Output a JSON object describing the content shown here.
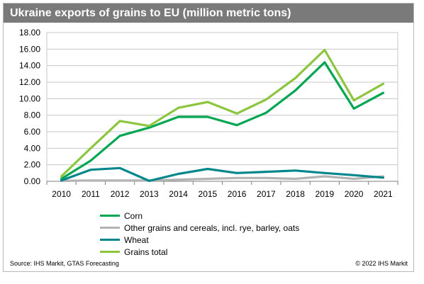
{
  "title": "Ukraine exports of grains to EU (million metric tons)",
  "source": "Source: IHS Markit, GTAS Forecasting",
  "copyright": "© 2022 IHS Markit",
  "chart_data": {
    "type": "line",
    "title": "Ukraine exports of grains to EU (million metric tons)",
    "xlabel": "",
    "ylabel": "",
    "x": [
      "2010",
      "2011",
      "2012",
      "2013",
      "2014",
      "2015",
      "2016",
      "2017",
      "2018",
      "2019",
      "2020",
      "2021"
    ],
    "ylim": [
      0,
      18
    ],
    "yticks": [
      "0.00",
      "2.00",
      "4.00",
      "6.00",
      "8.00",
      "10.00",
      "12.00",
      "14.00",
      "16.00",
      "18.00"
    ],
    "grid": true,
    "legend_position": "bottom",
    "series": [
      {
        "name": "Corn",
        "color": "#00a651",
        "values": [
          0.3,
          2.5,
          5.5,
          6.5,
          7.8,
          7.8,
          6.8,
          8.3,
          11.0,
          14.4,
          8.8,
          10.7
        ]
      },
      {
        "name": "Other grains and cereals, incl. rye, barley, oats",
        "color": "#b3b3b3",
        "values": [
          0.05,
          0.1,
          0.1,
          0.1,
          0.2,
          0.3,
          0.4,
          0.4,
          0.3,
          0.6,
          0.3,
          0.6
        ]
      },
      {
        "name": "Wheat",
        "color": "#00868b",
        "values": [
          0.1,
          1.4,
          1.6,
          0.05,
          0.9,
          1.5,
          1.0,
          1.15,
          1.3,
          1.0,
          0.75,
          0.45
        ]
      },
      {
        "name": "Grains total",
        "color": "#8cc63f",
        "values": [
          0.6,
          4.0,
          7.3,
          6.7,
          8.9,
          9.6,
          8.2,
          9.9,
          12.5,
          15.9,
          9.8,
          11.8
        ]
      }
    ]
  }
}
